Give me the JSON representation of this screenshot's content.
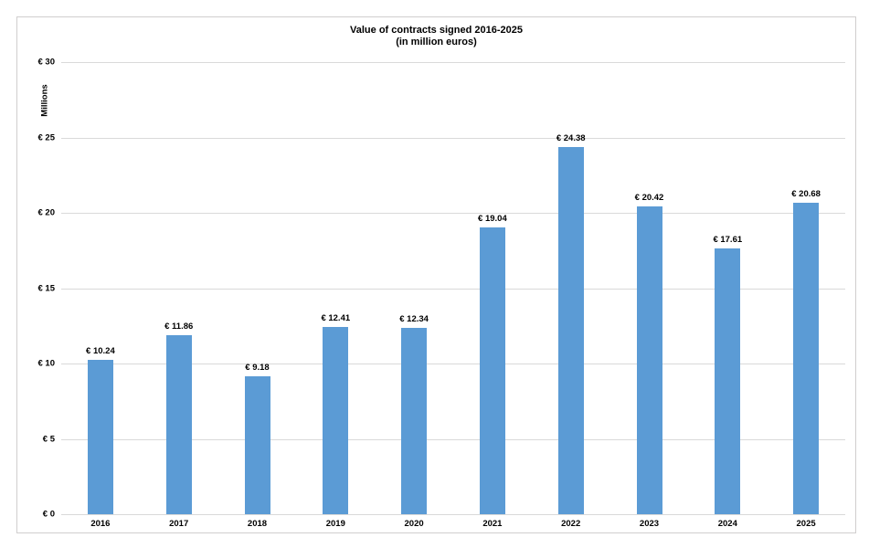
{
  "chart_data": {
    "type": "bar",
    "title": "Value of contracts signed 2016-2025 (in million euros)",
    "title_lines": [
      "Value of contracts signed 2016-2025",
      "(in million euros)"
    ],
    "ylabel": "Millions",
    "xlabel": "",
    "categories": [
      "2016",
      "2017",
      "2018",
      "2019",
      "2020",
      "2021",
      "2022",
      "2023",
      "2024",
      "2025"
    ],
    "values": [
      10.24,
      11.86,
      9.18,
      12.41,
      12.34,
      19.04,
      24.38,
      20.42,
      17.61,
      20.68
    ],
    "data_labels": [
      "€ 10.24",
      "€ 11.86",
      "€ 9.18",
      "€ 12.41",
      "€ 12.34",
      "€ 19.04",
      "€ 24.38",
      "€ 20.42",
      "€ 17.61",
      "€ 20.68"
    ],
    "ylim": [
      0,
      30
    ],
    "yticks": [
      0,
      5,
      10,
      15,
      20,
      25,
      30
    ],
    "ytick_labels": [
      "€ 0",
      "€ 5",
      "€ 10",
      "€ 15",
      "€ 20",
      "€ 25",
      "€ 30"
    ],
    "grid": true,
    "legend": false,
    "colors": {
      "bar": "#5B9BD5",
      "gridline": "#D9D9D9",
      "frame_border": "#D0CECE",
      "text": "#000000"
    }
  }
}
